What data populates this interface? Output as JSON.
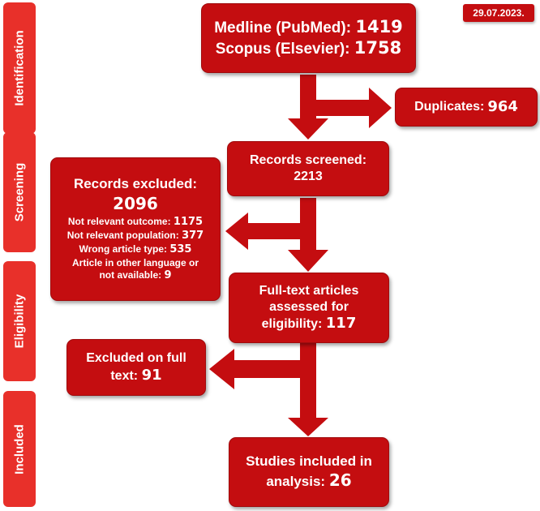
{
  "date": "29.07.2023.",
  "stages": {
    "identification": "Identification",
    "screening": "Screening",
    "eligibility": "Eligibility",
    "included": "Included"
  },
  "identification_box": {
    "line1_label": "Medline (PubMed): ",
    "line1_value": "1419",
    "line2_label": "Scopus (Elsevier): ",
    "line2_value": "1758"
  },
  "duplicates_box": {
    "label": "Duplicates: ",
    "value": "964"
  },
  "screened_box": {
    "label": "Records screened:",
    "value": "2213"
  },
  "excluded_box": {
    "title": "Records excluded:",
    "total": "2096",
    "reasons": [
      {
        "label": "Not relevant outcome: ",
        "value": "1175"
      },
      {
        "label": "Not relevant population: ",
        "value": "377"
      },
      {
        "label": "Wrong article type: ",
        "value": "535"
      },
      {
        "label": "Article in other language or",
        "value": ""
      },
      {
        "label": "not available: ",
        "value": "9"
      }
    ]
  },
  "fulltext_box": {
    "line1": "Full-text articles",
    "line2": "assessed for",
    "line3_label": "eligibility: ",
    "value": "117"
  },
  "excluded_fulltext_box": {
    "line1": "Excluded on full",
    "line2_label": "text: ",
    "value": "91"
  },
  "included_box": {
    "line1": "Studies included in",
    "line2_label": "analysis: ",
    "value": "26"
  }
}
